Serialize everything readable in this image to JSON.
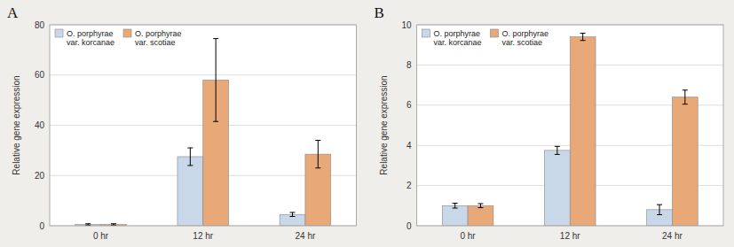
{
  "chart_data": [
    {
      "type": "bar",
      "title": "A",
      "y_label": "Relative gene expression",
      "categories": [
        "0 hr",
        "12 hr",
        "24 hr"
      ],
      "series": [
        {
          "name": "O. porphyrae\nvar. korcanae",
          "color": "#c8d8e8",
          "values": [
            0.5,
            27.5,
            4.5
          ],
          "errors": [
            0.3,
            3.5,
            0.8
          ]
        },
        {
          "name": "O. porphyrae\nvar. scotiae",
          "color": "#e8a878",
          "values": [
            0.5,
            58.0,
            28.5
          ],
          "errors": [
            0.3,
            16.5,
            5.5
          ]
        }
      ],
      "ylim": [
        0,
        80
      ],
      "yticks": [
        0,
        20,
        40,
        60,
        80
      ],
      "grid": true,
      "legend": "upper left"
    },
    {
      "type": "bar",
      "title": "B",
      "y_label": "Relative gene expression",
      "categories": [
        "0 hr",
        "12 hr",
        "24 hr"
      ],
      "series": [
        {
          "name": "O. porphyrae\nvar. korcanae",
          "color": "#c8d8e8",
          "values": [
            1.0,
            3.75,
            0.8
          ],
          "errors": [
            0.12,
            0.2,
            0.25
          ]
        },
        {
          "name": "O. porphyrae\nvar. scotiae",
          "color": "#e8a878",
          "values": [
            1.0,
            9.4,
            6.4
          ],
          "errors": [
            0.1,
            0.18,
            0.35
          ]
        }
      ],
      "ylim": [
        0,
        10
      ],
      "yticks": [
        0,
        2,
        4,
        6,
        8,
        10
      ],
      "grid": true,
      "legend": "upper left"
    }
  ]
}
